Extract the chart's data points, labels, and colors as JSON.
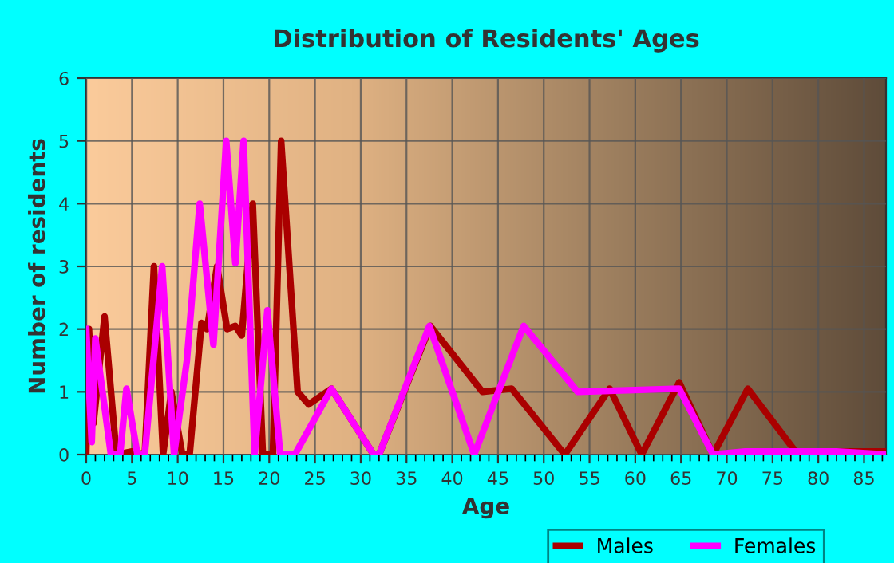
{
  "chart_data": {
    "type": "line",
    "title": "Distribution of Residents' Ages",
    "xlabel": "Age",
    "ylabel": "Number of residents",
    "xlim": [
      0,
      87.4
    ],
    "ylim": [
      0,
      6
    ],
    "xticks": [
      0,
      5,
      10,
      15,
      20,
      25,
      30,
      35,
      40,
      45,
      50,
      55,
      60,
      65,
      70,
      75,
      80,
      85
    ],
    "yticks": [
      0,
      1,
      2,
      3,
      4,
      5,
      6
    ],
    "grid": true,
    "legend": "bottom",
    "line_style": "solid",
    "marker": "none",
    "series": [
      {
        "name": "Males",
        "color": "#aa0000",
        "x": [
          0,
          0.3,
          0.8,
          2,
          3.3,
          5,
          6.4,
          7.4,
          8.4,
          9.3,
          10.5,
          11.3,
          12.6,
          13.2,
          14.3,
          15.4,
          16.3,
          17,
          18.2,
          19.3,
          20.4,
          21.3,
          23.1,
          24.3,
          26.8,
          31.4,
          32,
          37.6,
          43.3,
          46.5,
          52.3,
          57.2,
          60.7,
          64.8,
          68.5,
          72.3,
          77.5,
          87.4
        ],
        "values": [
          0,
          2,
          0.5,
          2.2,
          0,
          0.05,
          0,
          3,
          0,
          1,
          0,
          0,
          2.1,
          2,
          3,
          2,
          2.05,
          1.9,
          4,
          0,
          0,
          5,
          1,
          0.8,
          1.05,
          0,
          0,
          2.05,
          1,
          1.05,
          0,
          1.05,
          0,
          1.15,
          0,
          1.05,
          0.05,
          0.05
        ]
      },
      {
        "name": "Females",
        "color": "#ff00ff",
        "x": [
          0,
          0.6,
          1,
          2.7,
          3.7,
          4.4,
          5.6,
          6.4,
          8.3,
          9.6,
          11,
          12.4,
          13.9,
          15.3,
          16.3,
          17.2,
          18.4,
          19.8,
          21.2,
          22.8,
          26.8,
          31.4,
          32,
          37.5,
          42.4,
          47.8,
          53.7,
          64.8,
          68.5,
          72,
          82,
          87.4
        ],
        "values": [
          2,
          0.2,
          1.85,
          0,
          0,
          1.05,
          0,
          0,
          3,
          0,
          1.5,
          4,
          1.75,
          5,
          3.05,
          5,
          0,
          2.3,
          0,
          0,
          1.05,
          0,
          0,
          2.05,
          0,
          2.05,
          1,
          1.05,
          0,
          0.05,
          0.05,
          0
        ]
      }
    ]
  }
}
